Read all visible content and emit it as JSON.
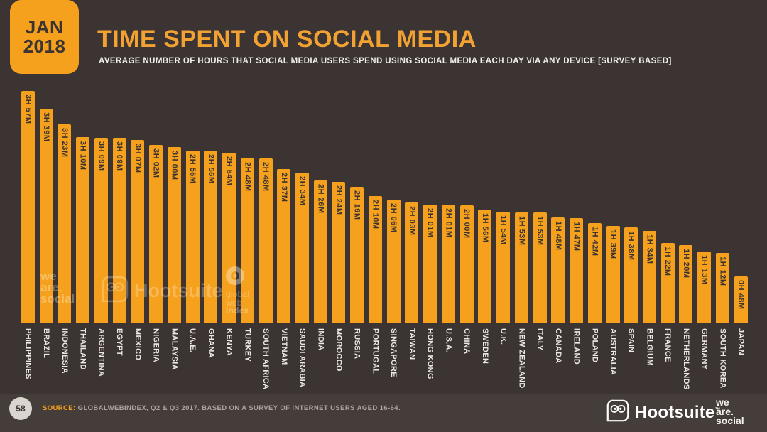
{
  "header": {
    "badge": {
      "line1": "JAN",
      "line2": "2018"
    },
    "title": "TIME SPENT ON SOCIAL MEDIA",
    "subtitle": "AVERAGE NUMBER OF HOURS THAT SOCIAL MEDIA USERS SPEND USING SOCIAL MEDIA EACH DAY VIA ANY DEVICE [SURVEY BASED]"
  },
  "chart_data": {
    "type": "bar",
    "title": "TIME SPENT ON SOCIAL MEDIA",
    "unit": "hours and minutes per day (H M)",
    "legend_position": "none",
    "grid": false,
    "ylim_minutes": [
      0,
      237
    ],
    "categories": [
      "PHILIPPINES",
      "BRAZIL",
      "INDONESIA",
      "THAILAND",
      "ARGENTINA",
      "EGYPT",
      "MEXICO",
      "NIGERIA",
      "MALAYSIA",
      "U.A.E.",
      "GHANA",
      "KENYA",
      "TURKEY",
      "SOUTH AFRICA",
      "VIETNAM",
      "SAUDI ARABIA",
      "INDIA",
      "MOROCCO",
      "RUSSIA",
      "PORTUGAL",
      "SINGAPORE",
      "TAIWAN",
      "HONG KONG",
      "U.S.A.",
      "CHINA",
      "SWEDEN",
      "U.K.",
      "NEW ZEALAND",
      "ITALY",
      "CANADA",
      "IRELAND",
      "POLAND",
      "AUSTRALIA",
      "SPAIN",
      "BELGIUM",
      "FRANCE",
      "NETHERLANDS",
      "GERMANY",
      "SOUTH KOREA",
      "JAPAN"
    ],
    "labels": [
      "3H 57M",
      "3H 39M",
      "3H 23M",
      "3H 10M",
      "3H 09M",
      "3H 09M",
      "3H 07M",
      "3H 02M",
      "3H 00M",
      "2H 56M",
      "2H 56M",
      "2H 54M",
      "2H 48M",
      "2H 48M",
      "2H 37M",
      "2H 34M",
      "2H 26M",
      "2H 24M",
      "2H 19M",
      "2H 10M",
      "2H 06M",
      "2H 03M",
      "2H 01M",
      "2H 01M",
      "2H 00M",
      "1H 56M",
      "1H 54M",
      "1H 53M",
      "1H 53M",
      "1H 48M",
      "1H 47M",
      "1H 42M",
      "1H 39M",
      "1H 38M",
      "1H 34M",
      "1H 22M",
      "1H 20M",
      "1H 13M",
      "1H 12M",
      "0H 48M"
    ],
    "values_minutes": [
      237,
      219,
      203,
      190,
      189,
      189,
      187,
      182,
      180,
      176,
      176,
      174,
      168,
      168,
      157,
      154,
      146,
      144,
      139,
      130,
      126,
      123,
      121,
      121,
      120,
      116,
      114,
      113,
      113,
      108,
      107,
      102,
      99,
      98,
      94,
      82,
      80,
      73,
      72,
      48
    ]
  },
  "watermarks": {
    "wearesocial": [
      "we",
      "are.",
      "social"
    ],
    "hootsuite": "Hootsuite",
    "gwi": [
      "global",
      "web",
      "index"
    ]
  },
  "footer": {
    "page_number": "58",
    "source_label": "SOURCE:",
    "source_text": " GLOBALWEBINDEX, Q2 & Q3 2017. BASED ON A SURVEY OF INTERNET USERS AGED 16-64.",
    "hootsuite_logo_text": "Hootsuite",
    "hootsuite_tm": "™",
    "wearesocial_logo": [
      "we",
      "are.",
      "social"
    ]
  },
  "colors": {
    "background": "#3B3433",
    "footer_background": "#453D3A",
    "accent_orange": "#F5A11D",
    "title_orange": "#F2A232",
    "bar_label_text": "#3B3433",
    "axis_label_text": "#EDE8E1",
    "muted_text": "#ADA49C"
  }
}
